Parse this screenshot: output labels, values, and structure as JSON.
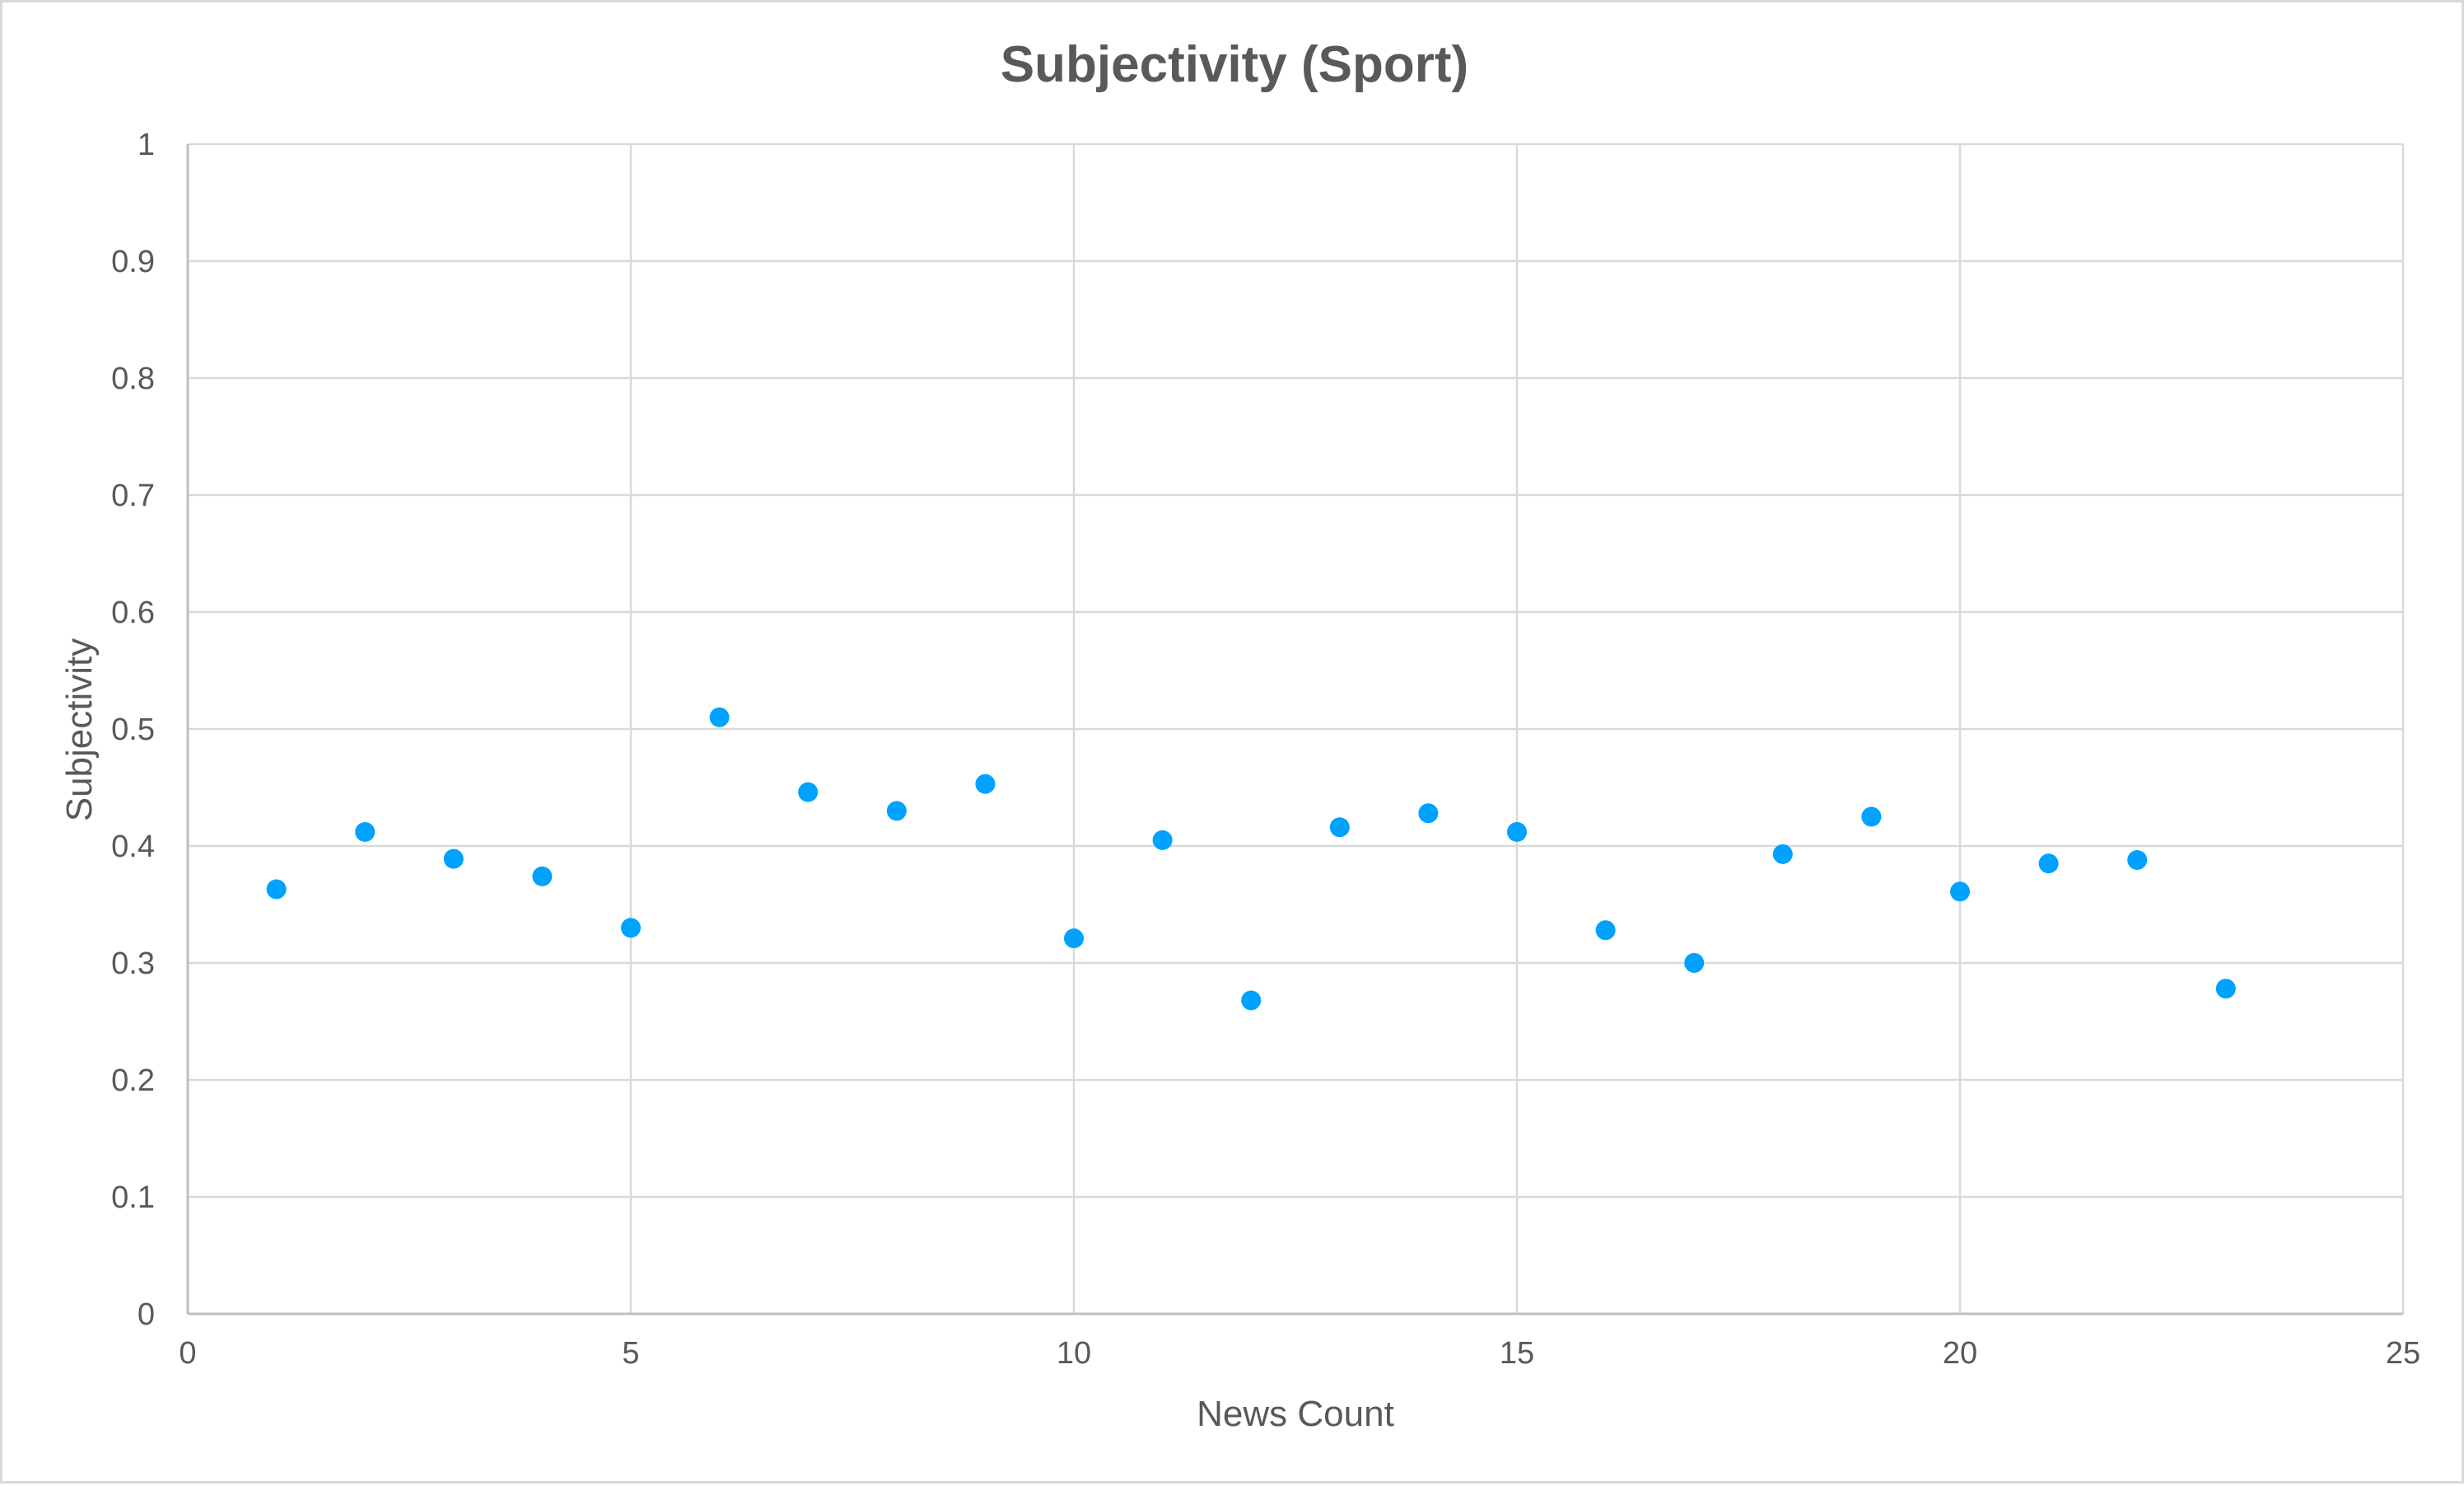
{
  "chart_data": {
    "type": "scatter",
    "title": "Subjectivity (Sport)",
    "xlabel": "News Count",
    "ylabel": "Subjectivity",
    "xlim": [
      0,
      25
    ],
    "ylim": [
      0,
      1
    ],
    "x_ticks": [
      "0",
      "5",
      "10",
      "15",
      "20",
      "25"
    ],
    "y_ticks": [
      "0",
      "0.1",
      "0.2",
      "0.3",
      "0.4",
      "0.5",
      "0.6",
      "0.7",
      "0.8",
      "0.9",
      "1"
    ],
    "grid": true,
    "marker_color": "#00a2ff",
    "x": [
      1,
      2,
      3,
      4,
      5,
      6,
      7,
      8,
      9,
      10,
      11,
      12,
      13,
      14,
      15,
      16,
      17,
      18,
      19,
      20,
      21,
      22,
      23
    ],
    "y": [
      0.363,
      0.412,
      0.389,
      0.374,
      0.33,
      0.51,
      0.446,
      0.43,
      0.453,
      0.321,
      0.405,
      0.268,
      0.416,
      0.428,
      0.412,
      0.328,
      0.3,
      0.393,
      0.425,
      0.361,
      0.385,
      0.388,
      0.278
    ]
  }
}
